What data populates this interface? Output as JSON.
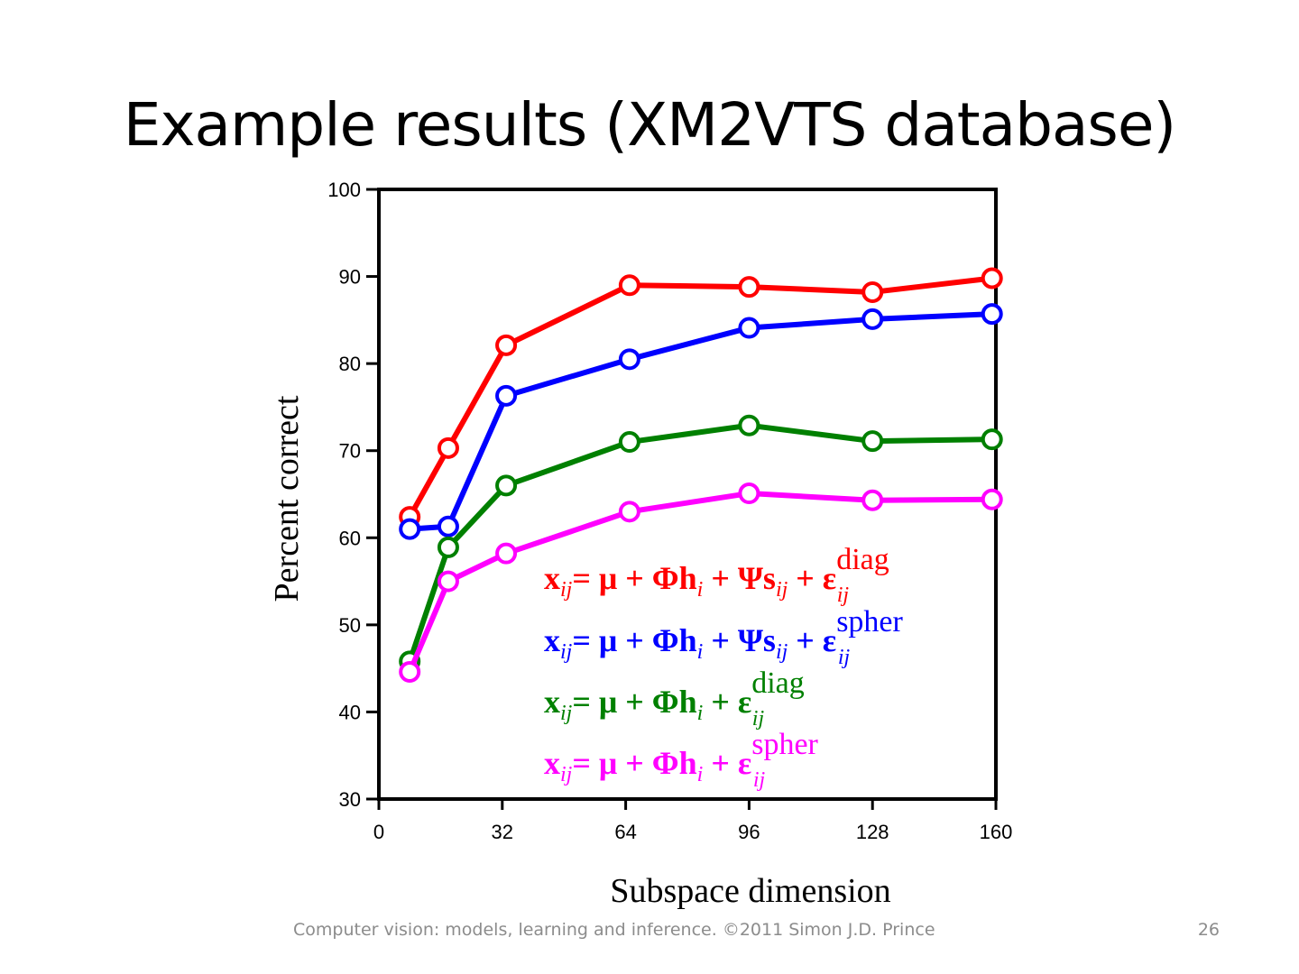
{
  "slide": {
    "title": "Example results (XM2VTS database)",
    "footer": "Computer vision: models, learning and inference.  ©2011 Simon J.D. Prince",
    "page_number": "26"
  },
  "chart_data": {
    "type": "line",
    "title": "",
    "xlabel": "Subspace dimension",
    "ylabel": "Percent correct",
    "xlim": [
      0,
      160
    ],
    "ylim": [
      30,
      100
    ],
    "xticks": [
      0,
      32,
      64,
      96,
      128,
      160
    ],
    "yticks": [
      30,
      40,
      50,
      60,
      70,
      80,
      90,
      100
    ],
    "x": [
      8,
      18,
      33,
      65,
      96,
      128,
      159
    ],
    "series": [
      {
        "name": "x_ij = μ + Φh_i + Ψs_ij + ε_ij^diag",
        "color": "#ff0000",
        "values": [
          62.4,
          70.3,
          82.1,
          89.0,
          88.8,
          88.2,
          89.8
        ],
        "legend": {
          "base": "x",
          "sub": "ij",
          "rhs": "= μ + Φh",
          "rhs_sub": "i",
          "mid": " + Ψs",
          "mid_sub": "ij",
          "eps": " + ε",
          "eps_sub": "ij",
          "sup": "diag"
        }
      },
      {
        "name": "x_ij = μ + Φh_i + Ψs_ij + ε_ij^spher",
        "color": "#0000ff",
        "values": [
          61.0,
          61.3,
          76.3,
          80.5,
          84.1,
          85.1,
          85.7
        ],
        "legend": {
          "base": "x",
          "sub": "ij",
          "rhs": "= μ + Φh",
          "rhs_sub": "i",
          "mid": " + Ψs",
          "mid_sub": "ij",
          "eps": " + ε",
          "eps_sub": "ij",
          "sup": "spher"
        }
      },
      {
        "name": "x_ij = μ + Φh_i + ε_ij^diag",
        "color": "#008000",
        "values": [
          45.8,
          58.9,
          66.0,
          71.0,
          72.9,
          71.1,
          71.3
        ],
        "legend": {
          "base": "x",
          "sub": "ij",
          "rhs": "= μ + Φh",
          "rhs_sub": "i",
          "mid": "",
          "mid_sub": "",
          "eps": " + ε",
          "eps_sub": "ij",
          "sup": "diag"
        }
      },
      {
        "name": "x_ij = μ + Φh_i + ε_ij^spher",
        "color": "#ff00ff",
        "values": [
          44.6,
          55.0,
          58.2,
          63.0,
          65.1,
          64.3,
          64.4
        ],
        "legend": {
          "base": "x",
          "sub": "ij",
          "rhs": "= μ + Φh",
          "rhs_sub": "i",
          "mid": "",
          "mid_sub": "",
          "eps": " + ε",
          "eps_sub": "ij",
          "sup": "spher"
        }
      }
    ],
    "grid": false,
    "legend_position": "bottom-right"
  }
}
